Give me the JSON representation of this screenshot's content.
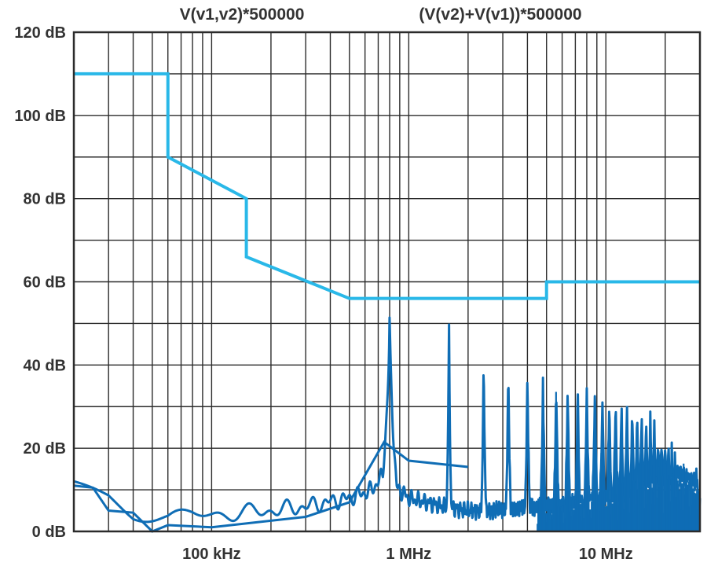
{
  "chart_data": {
    "type": "line",
    "x_scale": "log",
    "x_unit": "Hz",
    "xlim": [
      20000,
      30000000
    ],
    "ylim": [
      0,
      120
    ],
    "grid": true,
    "series_titles": [
      "V(v1,v2)*500000",
      "(V(v2)+V(v1))*500000"
    ],
    "y_ticks": [
      {
        "value": 0,
        "label": "0 dB"
      },
      {
        "value": 20,
        "label": "20 dB"
      },
      {
        "value": 40,
        "label": "40 dB"
      },
      {
        "value": 60,
        "label": "60 dB"
      },
      {
        "value": 80,
        "label": "80 dB"
      },
      {
        "value": 100,
        "label": "100 dB"
      },
      {
        "value": 120,
        "label": "120 dB"
      }
    ],
    "x_ticks": [
      {
        "value": 100000,
        "label": "100 kHz"
      },
      {
        "value": 1000000,
        "label": "1 MHz"
      },
      {
        "value": 10000000,
        "label": "10 MHz"
      }
    ],
    "colors": {
      "limit": "#29b8e8",
      "spectrum": "#0f6db5",
      "grid": "#2b2b2b"
    },
    "limit_line": {
      "x": [
        20000,
        60000,
        60000,
        150000,
        150000,
        500000,
        5000000,
        5000000,
        30000000
      ],
      "y": [
        110,
        110,
        90,
        80,
        66,
        56,
        56,
        60,
        60
      ]
    },
    "spectrum": {
      "base_x": [
        20000,
        30000,
        40000,
        60000,
        80000,
        100000,
        200000,
        300000,
        500000,
        650000,
        750000,
        800000,
        900000,
        1000000,
        1500000,
        2000000,
        2500000,
        5000000,
        10000000,
        15000000,
        20000000,
        30000000
      ],
      "base_y": [
        11,
        9,
        5,
        3,
        4,
        4,
        5,
        6,
        8,
        10,
        14,
        12,
        10,
        8,
        6,
        5,
        5,
        6,
        8,
        8,
        8,
        8
      ],
      "lower_x": [
        20000,
        25000,
        30000,
        40000,
        50000,
        60000,
        100000,
        300000,
        500000,
        750000,
        1000000,
        2000000
      ],
      "lower_y": [
        12,
        9,
        6,
        3,
        1,
        0,
        2,
        2,
        8,
        20,
        18,
        14
      ],
      "peaks": [
        {
          "f": 800000,
          "db": 54
        },
        {
          "f": 1600000,
          "db": 54
        },
        {
          "f": 2400000,
          "db": 47
        },
        {
          "f": 3200000,
          "db": 45
        },
        {
          "f": 4000000,
          "db": 43
        },
        {
          "f": 4800000,
          "db": 41
        },
        {
          "f": 5600000,
          "db": 40
        },
        {
          "f": 6400000,
          "db": 39
        },
        {
          "f": 7200000,
          "db": 38
        },
        {
          "f": 8000000,
          "db": 36
        },
        {
          "f": 8800000,
          "db": 37
        },
        {
          "f": 9600000,
          "db": 36
        },
        {
          "f": 10400000,
          "db": 35
        },
        {
          "f": 11200000,
          "db": 35
        },
        {
          "f": 12000000,
          "db": 34
        },
        {
          "f": 12800000,
          "db": 33
        },
        {
          "f": 13600000,
          "db": 32
        },
        {
          "f": 14400000,
          "db": 31
        },
        {
          "f": 15200000,
          "db": 30
        },
        {
          "f": 16000000,
          "db": 29
        },
        {
          "f": 16800000,
          "db": 28
        },
        {
          "f": 17600000,
          "db": 28
        },
        {
          "f": 18400000,
          "db": 26
        },
        {
          "f": 19200000,
          "db": 25
        },
        {
          "f": 20000000,
          "db": 23
        },
        {
          "f": 20800000,
          "db": 22
        },
        {
          "f": 21600000,
          "db": 21
        },
        {
          "f": 22400000,
          "db": 20
        },
        {
          "f": 23200000,
          "db": 19
        },
        {
          "f": 24000000,
          "db": 18
        },
        {
          "f": 24800000,
          "db": 17
        },
        {
          "f": 25600000,
          "db": 16
        },
        {
          "f": 26400000,
          "db": 16
        },
        {
          "f": 27200000,
          "db": 15
        },
        {
          "f": 28000000,
          "db": 14
        },
        {
          "f": 28800000,
          "db": 14
        }
      ]
    }
  }
}
